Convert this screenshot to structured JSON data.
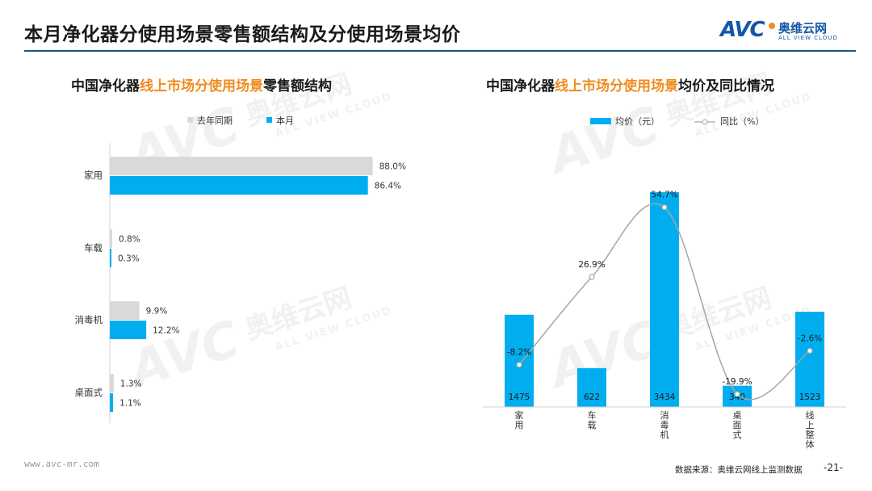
{
  "header": {
    "title": "本月净化器分使用场景零售额结构及分使用场景均价",
    "logo": {
      "brand": "AVC",
      "name_cn": "奥维云网",
      "name_en": "ALL VIEW CLOUD"
    }
  },
  "watermark": {
    "brand": "AVC",
    "name_cn": "奥维云网",
    "name_en": "ALL VIEW CLOUD"
  },
  "colors": {
    "accent": "#00aeef",
    "grey_bar": "#d9d9d9",
    "highlight": "#f08c1e",
    "line": "#a6a6a6",
    "rule": "#1f4e8c"
  },
  "left_chart": {
    "title_pre": "中国净化器",
    "title_hl": "线上市场分使用场景",
    "title_post": "零售额结构"
  },
  "right_chart": {
    "title_pre": "中国净化器",
    "title_hl": "线上市场分使用场景",
    "title_post": "均价及同比情况"
  },
  "chart_data": [
    {
      "type": "bar",
      "orientation": "horizontal",
      "categories": [
        "家用",
        "车载",
        "消毒机",
        "桌面式"
      ],
      "series": [
        {
          "name": "去年同期",
          "values": [
            88.0,
            0.8,
            9.9,
            1.3
          ],
          "labels": [
            "88.0%",
            "0.8%",
            "9.9%",
            "1.3%"
          ],
          "color": "#d9d9d9"
        },
        {
          "name": "本月",
          "values": [
            86.4,
            0.3,
            12.2,
            1.1
          ],
          "labels": [
            "86.4%",
            "0.3%",
            "12.2%",
            "1.1%"
          ],
          "color": "#00aeef"
        }
      ],
      "legend_position": "top",
      "xlim": [
        0,
        100
      ]
    },
    {
      "type": "bar",
      "categories": [
        "家用",
        "车载",
        "消毒机",
        "桌面式",
        "线上整体"
      ],
      "series": [
        {
          "name": "均价（元）",
          "type": "bar",
          "values": [
            1475,
            622,
            3434,
            340,
            1523
          ],
          "labels": [
            "1475",
            "622",
            "3434",
            "340",
            "1523"
          ],
          "color": "#00aeef"
        },
        {
          "name": "同比（%）",
          "type": "line",
          "values": [
            -8.2,
            26.9,
            54.7,
            -19.9,
            -2.6
          ],
          "labels": [
            "-8.2%",
            "26.9%",
            "54.7%",
            "-19.9%",
            "-2.6%"
          ],
          "color": "#a6a6a6"
        }
      ],
      "legend_position": "top",
      "ylim_bar": [
        0,
        4000
      ],
      "ylim_line": [
        -30,
        60
      ]
    }
  ],
  "footer": {
    "url": "www.avc-mr.com",
    "source": "数据来源：奥维云网线上监测数据",
    "page": "-21-"
  }
}
